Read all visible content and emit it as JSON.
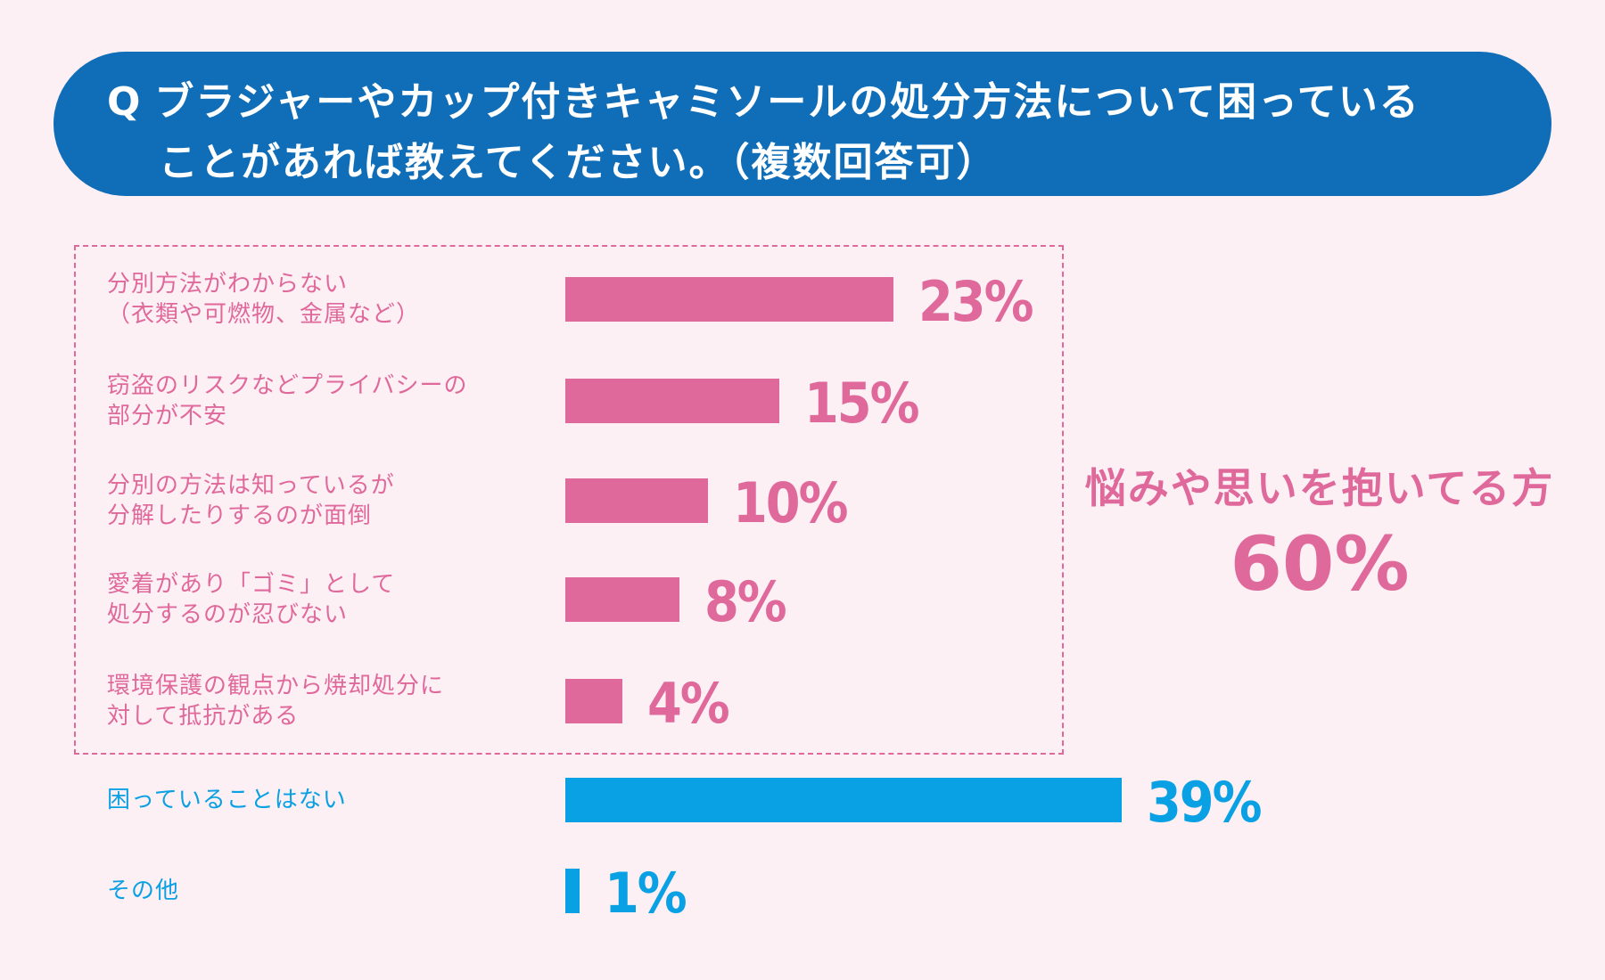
{
  "header": {
    "q_mark": "Q",
    "question_line1": "ブラジャーやカップ付きキャミソールの処分方法について困っている",
    "question_line2": "ことがあれば教えてください。（複数回答可）"
  },
  "summary": {
    "label": "悩みや思いを抱いてる方",
    "value": "60%"
  },
  "colors": {
    "pink": "#e0699b",
    "blue": "#0aa0e4",
    "banner": "#106db7",
    "background": "#fcf0f4"
  },
  "chart_data": {
    "type": "bar",
    "orientation": "horizontal",
    "title": "ブラジャーやカップ付きキャミソールの処分方法について困っていることがあれば教えてください。（複数回答可）",
    "xlabel": "",
    "ylabel": "",
    "xlim": [
      0,
      40
    ],
    "categories": [
      "  分別方法がわからない\n（衣類や可燃物、金属など）",
      "窃盗のリスクなどプライバシーの\n部分が不安",
      "分別の方法は知っているが\n分解したりするのが面倒",
      "愛着があり「ゴミ」として\n処分するのが忍びない",
      "環境保護の観点から焼却処分に\n対して抵抗がある",
      "困っていることはない",
      "その他"
    ],
    "values": [
      23,
      15,
      10,
      8,
      4,
      39,
      1
    ],
    "value_labels": [
      "23%",
      "15%",
      "10%",
      "8%",
      "4%",
      "39%",
      "1%"
    ],
    "bar_colors": [
      "pink",
      "pink",
      "pink",
      "pink",
      "pink",
      "blue",
      "blue"
    ]
  }
}
